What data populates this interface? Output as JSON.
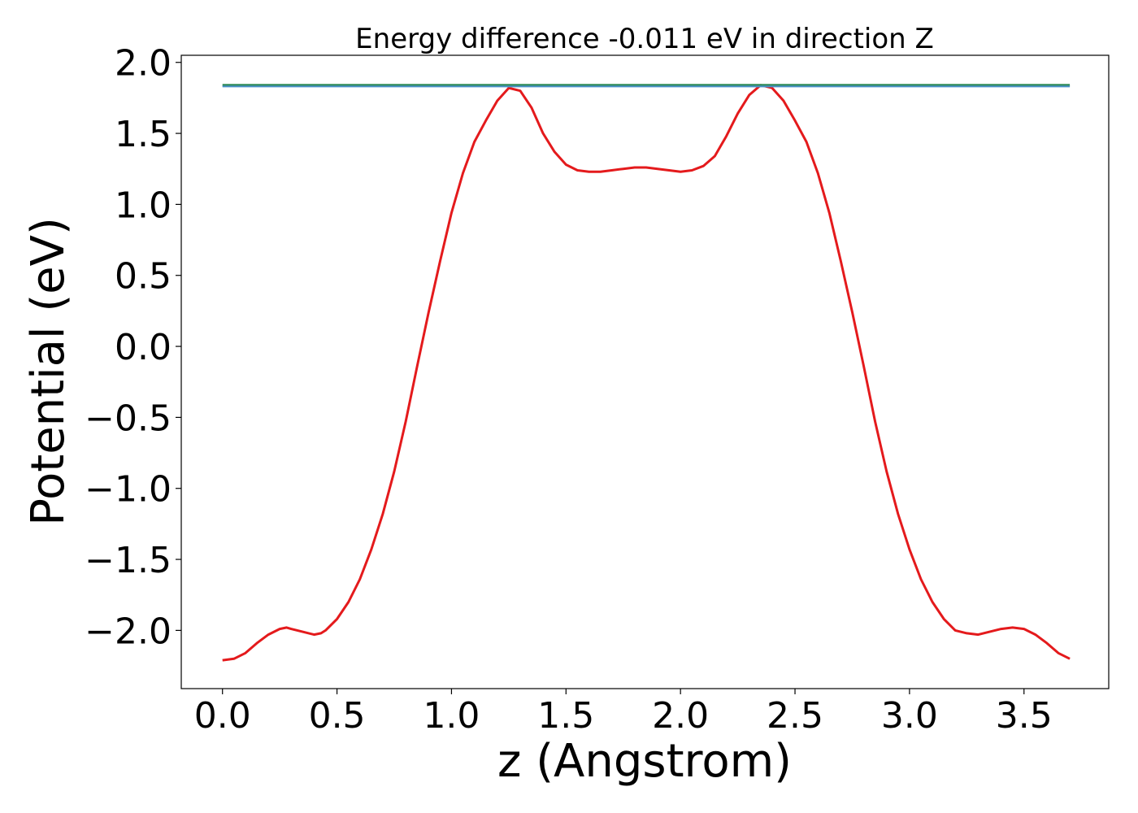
{
  "chart_data": {
    "type": "line",
    "title": "Energy difference -0.011 eV in direction Z",
    "xlabel": "z (Angstrom)",
    "ylabel": "Potential (eV)",
    "xlim": [
      -0.18,
      3.87
    ],
    "ylim": [
      -2.41,
      2.05
    ],
    "xticks": [
      0.0,
      0.5,
      1.0,
      1.5,
      2.0,
      2.5,
      3.0,
      3.5
    ],
    "xtick_labels": [
      "0.0",
      "0.5",
      "1.0",
      "1.5",
      "2.0",
      "2.5",
      "3.0",
      "3.5"
    ],
    "yticks": [
      -2.0,
      -1.5,
      -1.0,
      -0.5,
      0.0,
      0.5,
      1.0,
      1.5,
      2.0
    ],
    "ytick_labels": [
      "−2.0",
      "−1.5",
      "−1.0",
      "−0.5",
      "0.0",
      "0.5",
      "1.0",
      "1.5",
      "2.0"
    ],
    "grid": false,
    "series": [
      {
        "color": "#e41a1c",
        "x": [
          0.0,
          0.05,
          0.1,
          0.15,
          0.2,
          0.25,
          0.28,
          0.3,
          0.35,
          0.4,
          0.43,
          0.45,
          0.5,
          0.55,
          0.6,
          0.65,
          0.7,
          0.75,
          0.8,
          0.85,
          0.9,
          0.95,
          1.0,
          1.05,
          1.1,
          1.15,
          1.2,
          1.25,
          1.3,
          1.35,
          1.4,
          1.45,
          1.5,
          1.55,
          1.6,
          1.65,
          1.7,
          1.75,
          1.8,
          1.85,
          1.9,
          1.95,
          2.0,
          2.05,
          2.1,
          2.15,
          2.2,
          2.25,
          2.3,
          2.35,
          2.4,
          2.45,
          2.5,
          2.55,
          2.6,
          2.65,
          2.7,
          2.75,
          2.8,
          2.85,
          2.9,
          2.95,
          3.0,
          3.05,
          3.1,
          3.15,
          3.2,
          3.25,
          3.3,
          3.35,
          3.4,
          3.45,
          3.5,
          3.55,
          3.6,
          3.65,
          3.7
        ],
        "y": [
          -2.21,
          -2.2,
          -2.16,
          -2.09,
          -2.03,
          -1.99,
          -1.98,
          -1.99,
          -2.01,
          -2.03,
          -2.02,
          -2.0,
          -1.92,
          -1.8,
          -1.64,
          -1.43,
          -1.18,
          -0.88,
          -0.53,
          -0.14,
          0.24,
          0.6,
          0.94,
          1.22,
          1.44,
          1.59,
          1.73,
          1.82,
          1.8,
          1.68,
          1.5,
          1.37,
          1.28,
          1.24,
          1.23,
          1.23,
          1.24,
          1.25,
          1.26,
          1.26,
          1.25,
          1.24,
          1.23,
          1.24,
          1.27,
          1.34,
          1.48,
          1.64,
          1.77,
          1.84,
          1.82,
          1.73,
          1.59,
          1.44,
          1.22,
          0.94,
          0.6,
          0.24,
          -0.14,
          -0.53,
          -0.88,
          -1.18,
          -1.43,
          -1.64,
          -1.8,
          -1.92,
          -2.0,
          -2.02,
          -2.03,
          -2.01,
          -1.99,
          -1.98,
          -1.99,
          -2.03,
          -2.09,
          -2.16,
          -2.2
        ]
      },
      {
        "color": "#2e8b57",
        "x": [
          0.0,
          3.7
        ],
        "y": [
          1.84,
          1.84
        ]
      },
      {
        "color": "#4a90c8",
        "x": [
          0.0,
          3.7
        ],
        "y": [
          1.83,
          1.83
        ]
      }
    ]
  }
}
